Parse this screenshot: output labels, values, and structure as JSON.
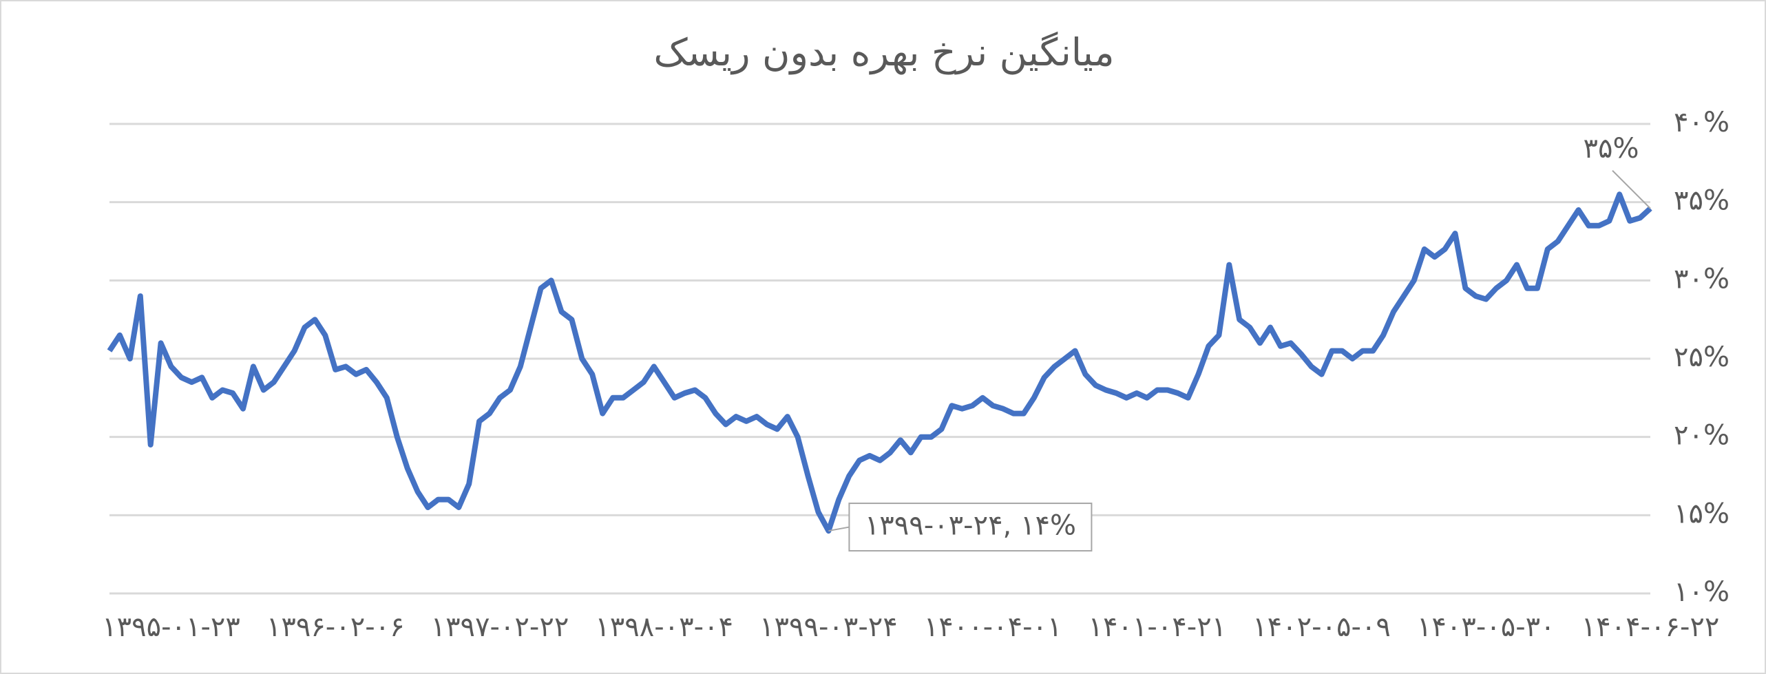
{
  "chart_data": {
    "type": "line",
    "title": "میانگین نرخ بهره بدون ریسک",
    "categories": [
      null,
      null,
      null,
      null,
      null,
      null,
      "۱۳۹۵-۰۱-۲۳",
      null,
      null,
      null,
      null,
      null,
      null,
      null,
      null,
      null,
      null,
      null,
      null,
      null,
      null,
      null,
      "۱۳۹۶-۰۲-۰۶",
      null,
      null,
      null,
      null,
      null,
      null,
      null,
      null,
      null,
      null,
      null,
      null,
      null,
      null,
      null,
      "۱۳۹۷-۰۲-۲۲",
      null,
      null,
      null,
      null,
      null,
      null,
      null,
      null,
      null,
      null,
      null,
      null,
      null,
      null,
      null,
      "۱۳۹۸-۰۳-۰۴",
      null,
      null,
      null,
      null,
      null,
      null,
      null,
      null,
      null,
      null,
      null,
      null,
      null,
      null,
      null,
      "۱۳۹۹-۰۳-۲۴",
      null,
      null,
      null,
      null,
      null,
      null,
      null,
      null,
      null,
      null,
      null,
      null,
      null,
      null,
      null,
      "۱۴۰۰-۰۴-۰۱",
      null,
      null,
      null,
      null,
      null,
      null,
      null,
      null,
      null,
      null,
      null,
      null,
      null,
      null,
      null,
      "۱۴۰۱-۰۴-۲۱",
      null,
      null,
      null,
      null,
      null,
      null,
      null,
      null,
      null,
      null,
      null,
      null,
      null,
      null,
      null,
      "۱۴۰۲-۰۵-۰۹",
      null,
      null,
      null,
      null,
      null,
      null,
      null,
      null,
      null,
      null,
      null,
      null,
      null,
      null,
      null,
      "۱۴۰۳-۰۵-۳۰",
      null,
      null,
      null,
      null,
      null,
      null,
      null,
      null,
      null,
      null,
      null,
      null,
      null,
      null,
      null,
      "۱۴۰۴-۰۶-۲۲"
    ],
    "series": [
      {
        "name": "میانگین نرخ بهره بدون ریسک",
        "color": "#4472c4",
        "values": [
          25.5,
          26.5,
          25,
          29,
          19.5,
          26,
          24.5,
          23.8,
          23.5,
          23.8,
          22.5,
          23,
          22.8,
          21.8,
          24.5,
          23,
          23.5,
          24.5,
          25.5,
          27,
          27.5,
          26.5,
          24.3,
          24.5,
          24,
          24.3,
          23.5,
          22.5,
          20,
          18,
          16.5,
          15.5,
          16,
          16,
          15.5,
          17,
          21,
          21.5,
          22.5,
          23,
          24.5,
          27,
          29.5,
          30,
          28,
          27.5,
          25,
          24,
          21.5,
          22.5,
          22.5,
          23,
          23.5,
          24.5,
          23.5,
          22.5,
          22.8,
          23,
          22.5,
          21.5,
          20.8,
          21.3,
          21,
          21.3,
          20.8,
          20.5,
          21.3,
          20,
          17.5,
          15.2,
          14,
          16,
          17.5,
          18.5,
          18.8,
          18.5,
          19,
          19.8,
          19,
          20,
          20,
          20.5,
          22,
          21.8,
          22,
          22.5,
          22,
          21.8,
          21.5,
          21.5,
          22.5,
          23.8,
          24.5,
          25,
          25.5,
          24,
          23.3,
          23,
          22.8,
          22.5,
          22.8,
          22.5,
          23,
          23,
          22.8,
          22.5,
          24,
          25.8,
          26.5,
          31,
          27.5,
          27,
          26,
          27,
          25.8,
          26,
          25.3,
          24.5,
          24,
          25.5,
          25.5,
          25,
          25.5,
          25.5,
          26.5,
          28,
          29,
          30,
          32,
          31.5,
          32,
          33,
          29.5,
          29,
          28.8,
          29.5,
          30,
          31,
          29.5,
          29.5,
          32,
          32.5,
          33.5,
          34.5,
          33.5,
          33.5,
          33.8,
          35.5,
          33.8,
          34,
          34.6
        ],
        "value_labels": [
          null,
          null,
          null,
          null,
          null,
          null,
          null,
          null,
          null,
          null,
          null,
          null,
          null,
          null,
          null,
          null,
          null,
          null,
          null,
          null,
          null,
          null,
          null,
          null,
          null,
          null,
          null,
          null,
          null,
          null,
          null,
          null,
          null,
          null,
          null,
          null,
          null,
          null,
          null,
          null,
          null,
          null,
          null,
          null,
          null,
          null,
          null,
          null,
          null,
          null,
          null,
          null,
          null,
          null,
          null,
          null,
          null,
          null,
          null,
          null,
          null,
          null,
          null,
          null,
          null,
          null,
          null,
          null,
          null,
          null,
          "۱۳۹۹-۰۳-۲۴, ۱۴%",
          null,
          null,
          null,
          null,
          null,
          null,
          null,
          null,
          null,
          null,
          null,
          null,
          null,
          null,
          null,
          null,
          null,
          null,
          null,
          null,
          null,
          null,
          null,
          null,
          null,
          null,
          null,
          null,
          null,
          null,
          null,
          null,
          null,
          null,
          null,
          null,
          null,
          null,
          null,
          null,
          null,
          null,
          null,
          null,
          null,
          null,
          null,
          null,
          null,
          null,
          null,
          null,
          null,
          null,
          null,
          null,
          null,
          null,
          null,
          null,
          null,
          null,
          null,
          null,
          null,
          null,
          null,
          null,
          null,
          null,
          null,
          null,
          null,
          null,
          null,
          null,
          null,
          null,
          null,
          "۳۵%"
        ]
      }
    ],
    "ylim": [
      10,
      40
    ],
    "yticks": [
      {
        "value": 10,
        "label": "۱۰%"
      },
      {
        "value": 15,
        "label": "۱۵%"
      },
      {
        "value": 20,
        "label": "۲۰%"
      },
      {
        "value": 25,
        "label": "۲۵%"
      },
      {
        "value": 30,
        "label": "۳۰%"
      },
      {
        "value": 35,
        "label": "۳۵%"
      },
      {
        "value": 40,
        "label": "۴۰%"
      }
    ],
    "grid": true
  }
}
